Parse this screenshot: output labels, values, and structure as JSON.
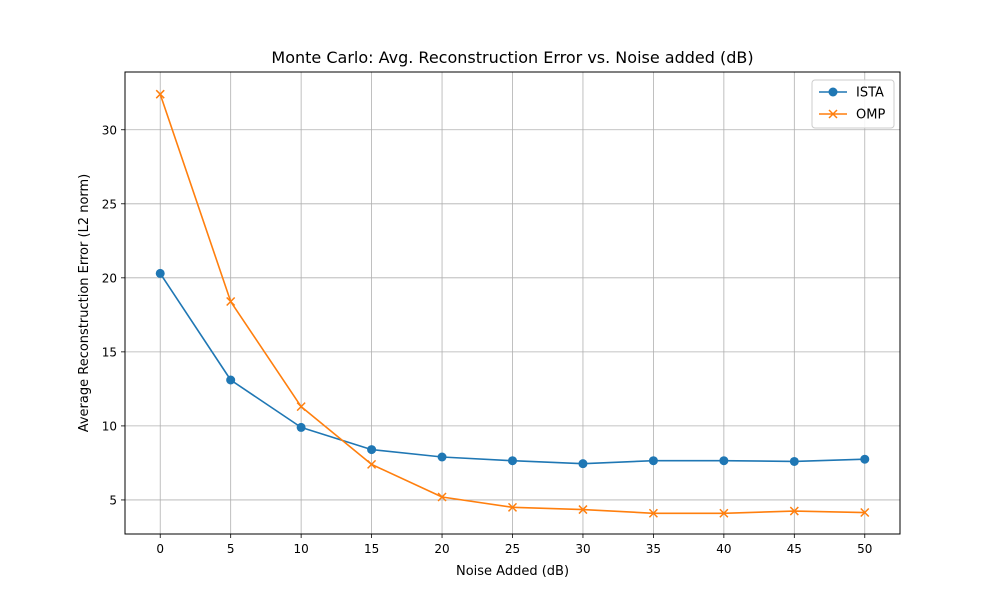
{
  "chart_data": {
    "type": "line",
    "title": "Monte Carlo: Avg. Reconstruction Error vs. Noise added (dB)",
    "xlabel": "Noise Added (dB)",
    "ylabel": "Average Reconstruction Error (L2 norm)",
    "x": [
      0,
      5,
      10,
      15,
      20,
      25,
      30,
      35,
      40,
      45,
      50
    ],
    "xlim": [
      -2.5,
      52.5
    ],
    "ylim": [
      2.7,
      33.9
    ],
    "xticks": [
      0,
      5,
      10,
      15,
      20,
      25,
      30,
      35,
      40,
      45,
      50
    ],
    "yticks": [
      5,
      10,
      15,
      20,
      25,
      30
    ],
    "grid": true,
    "legend_position": "top-right",
    "series": [
      {
        "name": "ISTA",
        "color": "#1f77b4",
        "marker": "circle",
        "values": [
          20.3,
          13.1,
          9.9,
          8.4,
          7.9,
          7.65,
          7.45,
          7.65,
          7.65,
          7.6,
          7.75
        ]
      },
      {
        "name": "OMP",
        "color": "#ff7f0e",
        "marker": "x",
        "values": [
          32.4,
          18.4,
          11.3,
          7.4,
          5.2,
          4.5,
          4.35,
          4.1,
          4.1,
          4.25,
          4.15
        ]
      }
    ]
  }
}
